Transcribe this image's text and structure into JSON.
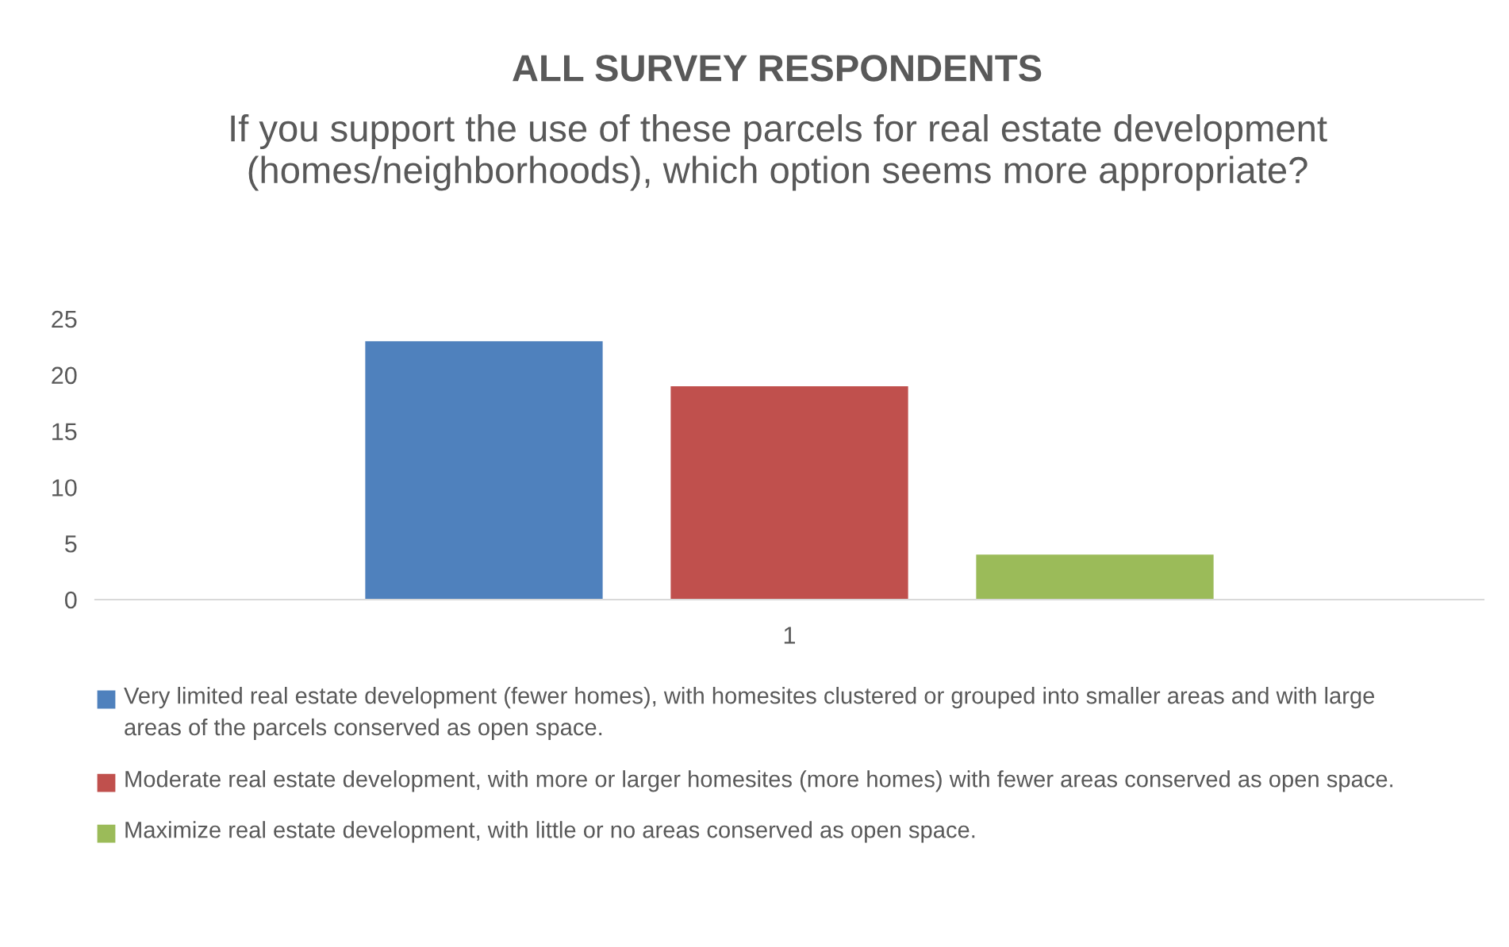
{
  "chart_data": {
    "type": "bar",
    "title": "ALL SURVEY RESPONDENTS",
    "subtitle": "If you support the use of these parcels for real estate development (homes/neighborhoods), which option seems more appropriate?",
    "categories": [
      "1"
    ],
    "series": [
      {
        "name": "Very limited real estate development (fewer homes), with homesites clustered or grouped into smaller areas and with large areas of the parcels conserved as open space.",
        "color": "#4f81bd",
        "values": [
          23
        ]
      },
      {
        "name": "Moderate real estate development, with more or larger homesites (more homes) with fewer areas conserved as open space.",
        "color": "#c0504d",
        "values": [
          19
        ]
      },
      {
        "name": "Maximize real estate development, with little or no areas conserved as open space.",
        "color": "#9bbb59",
        "values": [
          4
        ]
      }
    ],
    "ylim": [
      0,
      25
    ],
    "yticks": [
      0,
      5,
      10,
      15,
      20,
      25
    ],
    "grid": false,
    "legend": "bottom"
  }
}
